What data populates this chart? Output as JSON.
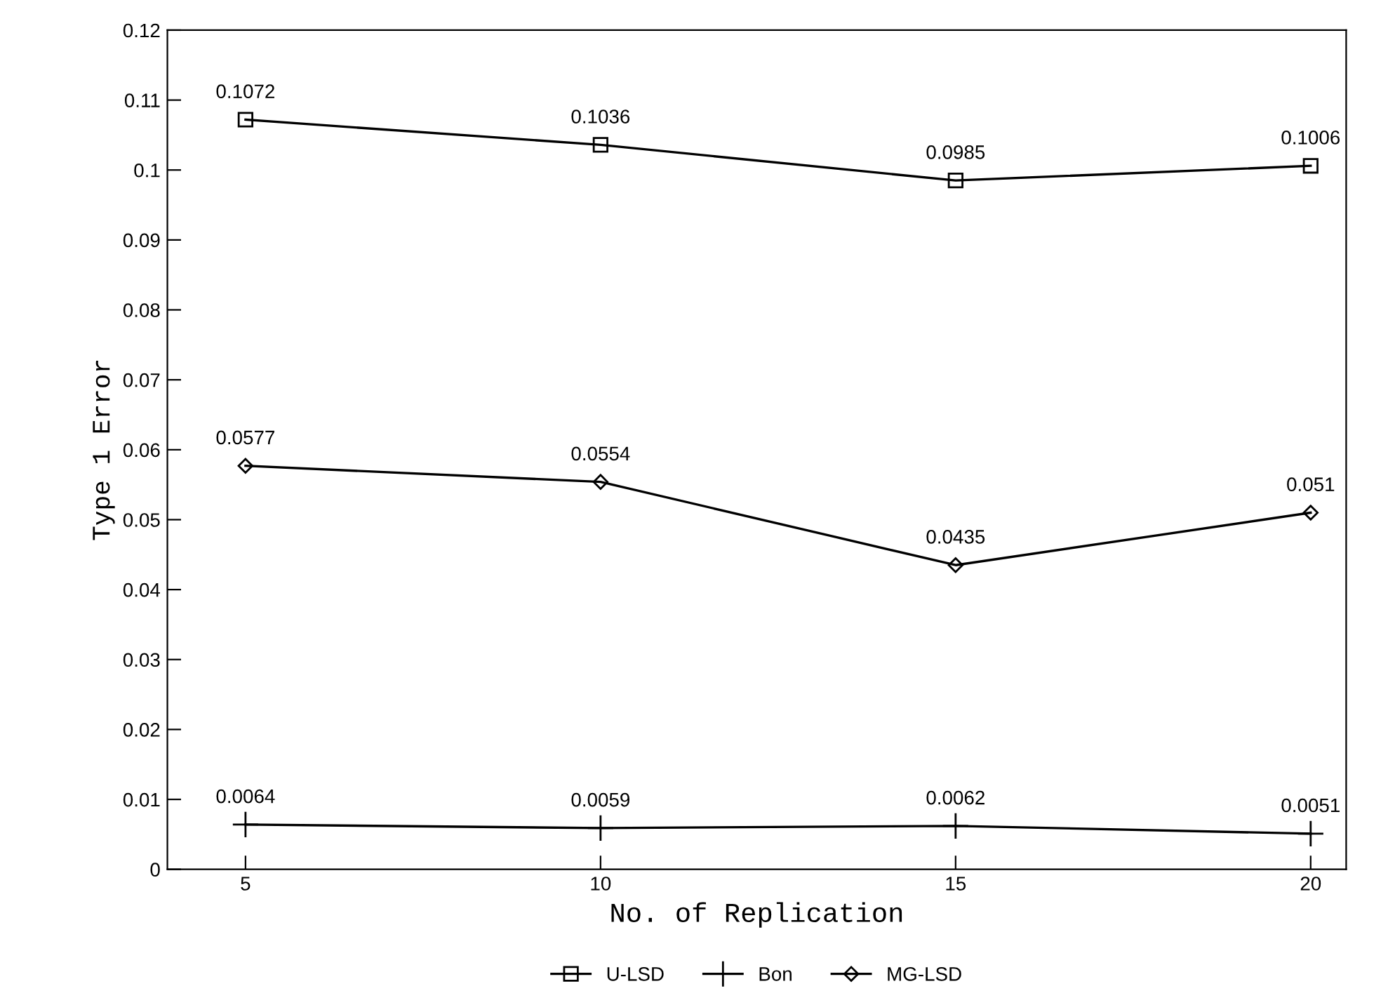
{
  "chart_data": {
    "type": "line",
    "xlabel": "No. of Replication",
    "ylabel": "Type 1 Error",
    "x": [
      5,
      10,
      15,
      20
    ],
    "xlim": [
      3.9,
      20.5
    ],
    "xticks": [
      5,
      10,
      15,
      20
    ],
    "ylim": [
      0,
      0.12
    ],
    "yticks": [
      0,
      0.01,
      0.02,
      0.03,
      0.04,
      0.05,
      0.06,
      0.07,
      0.08,
      0.09,
      0.1,
      0.11,
      0.12
    ],
    "series": [
      {
        "name": "U-LSD",
        "color": "#000000",
        "marker": "square",
        "values": [
          0.1072,
          0.1036,
          0.0985,
          0.1006
        ]
      },
      {
        "name": "Bon",
        "color": "#000000",
        "marker": "cross",
        "values": [
          0.0064,
          0.0059,
          0.0062,
          0.0051
        ]
      },
      {
        "name": "MG-LSD",
        "color": "#000000",
        "marker": "diamond",
        "values": [
          0.0577,
          0.0554,
          0.0435,
          0.051
        ]
      }
    ],
    "data_labels": true,
    "legend": "bottom",
    "grid": false,
    "line_style": "solid"
  }
}
